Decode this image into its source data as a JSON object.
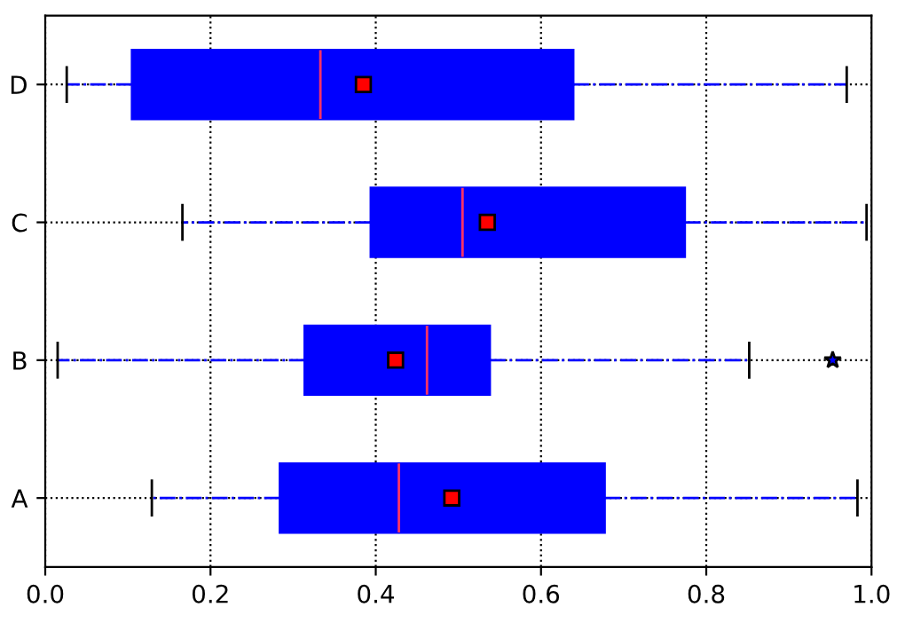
{
  "chart_data": {
    "type": "box",
    "orientation": "horizontal",
    "color": "#0000ff",
    "categories": [
      "D",
      "C",
      "B",
      "A"
    ],
    "boxes": [
      {
        "low": 0.026,
        "q1": 0.105,
        "median": 0.333,
        "q3": 0.639,
        "high": 0.97,
        "mean": 0.385
      },
      {
        "low": 0.166,
        "q1": 0.394,
        "median": 0.505,
        "q3": 0.774,
        "high": 0.994,
        "mean": 0.535
      },
      {
        "low": 0.015,
        "q1": 0.314,
        "median": 0.462,
        "q3": 0.538,
        "high": 0.852,
        "mean": 0.424,
        "outliers": [
          0.953
        ]
      },
      {
        "low": 0.129,
        "q1": 0.284,
        "median": 0.428,
        "q3": 0.677,
        "high": 0.983,
        "mean": 0.492
      }
    ],
    "xlim": [
      0,
      1
    ],
    "xticks": [
      {
        "value": 0,
        "label": "0.0"
      },
      {
        "value": 0.2,
        "label": "0.2"
      },
      {
        "value": 0.4,
        "label": "0.4"
      },
      {
        "value": 0.6,
        "label": "0.6"
      },
      {
        "value": 0.8,
        "label": "0.8"
      },
      {
        "value": 1,
        "label": "1.0"
      }
    ],
    "grid": true
  }
}
